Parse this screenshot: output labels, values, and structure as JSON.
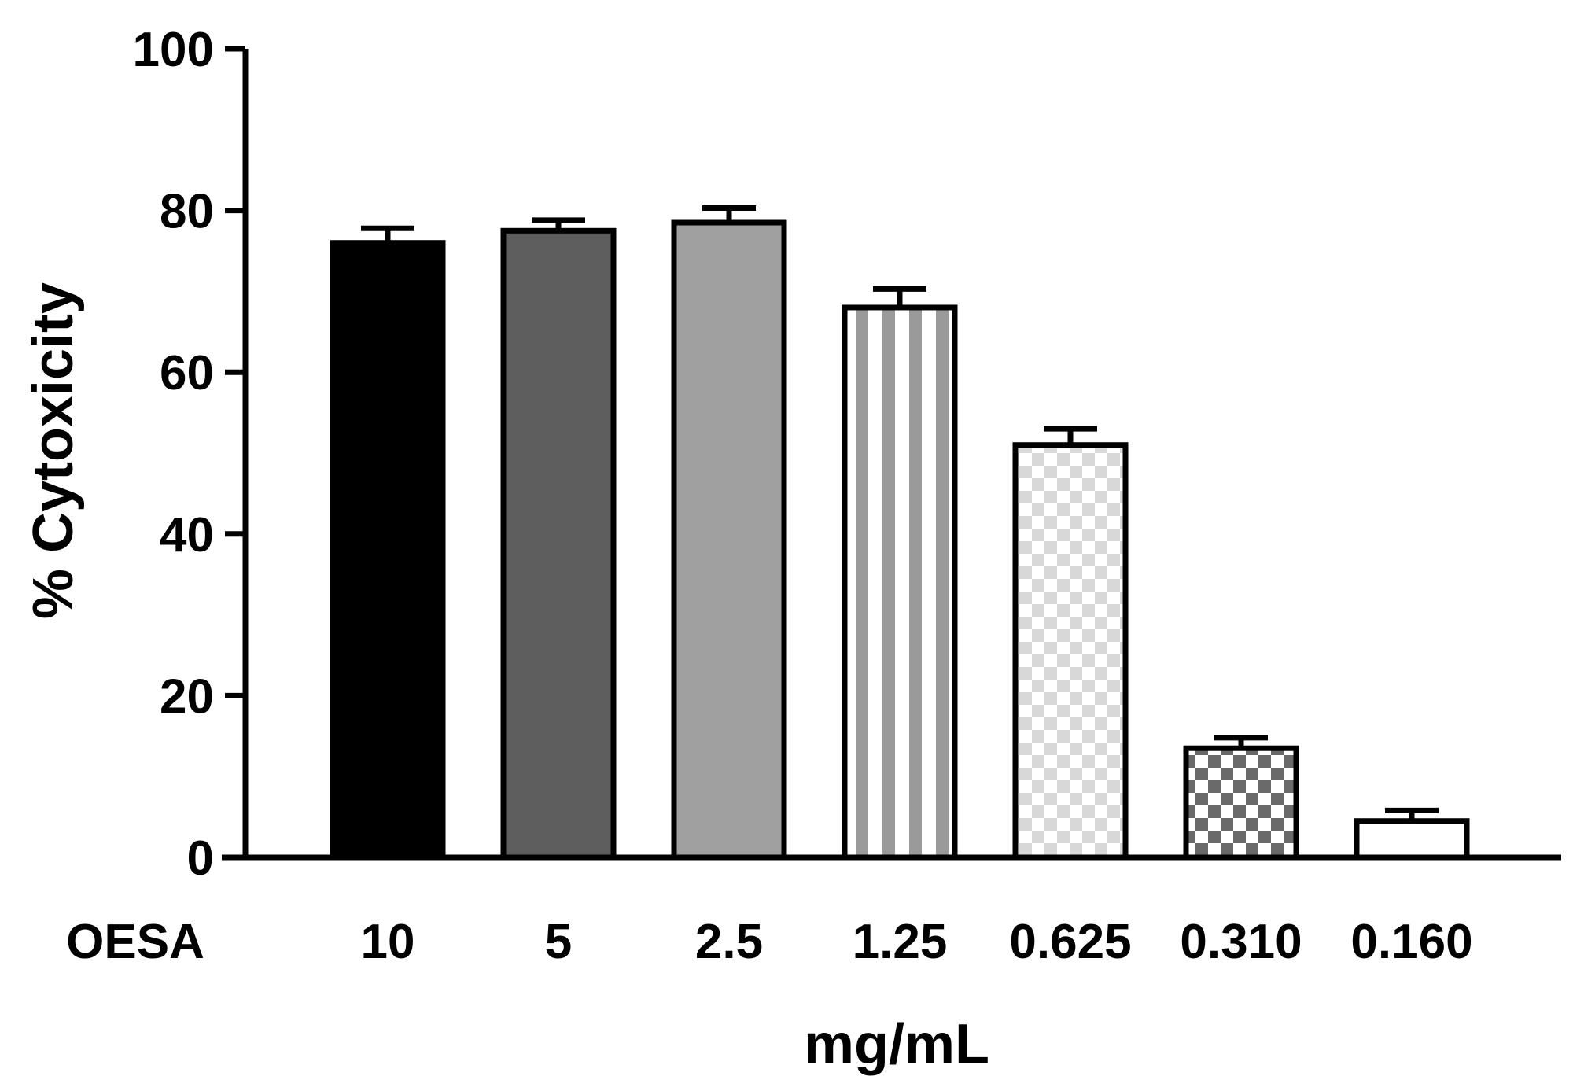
{
  "chart_data": {
    "type": "bar",
    "categories": [
      "10",
      "5",
      "2.5",
      "1.25",
      "0.625",
      "0.310",
      "0.160"
    ],
    "values": [
      76,
      77.5,
      78.5,
      68,
      51,
      13.5,
      4.5
    ],
    "errors": [
      1.8,
      1.3,
      1.8,
      2.3,
      2.0,
      1.3,
      1.3
    ],
    "bar_styles": [
      "black",
      "dark-gray",
      "gray",
      "striped",
      "light-checker",
      "dark-checker",
      "white"
    ],
    "ylabel": "% Cytoxicity",
    "xlabel": "mg/mL",
    "row_label": "OESA",
    "ylim": [
      0,
      100
    ],
    "yticks": [
      0,
      20,
      40,
      60,
      80,
      100
    ],
    "grid": false
  }
}
